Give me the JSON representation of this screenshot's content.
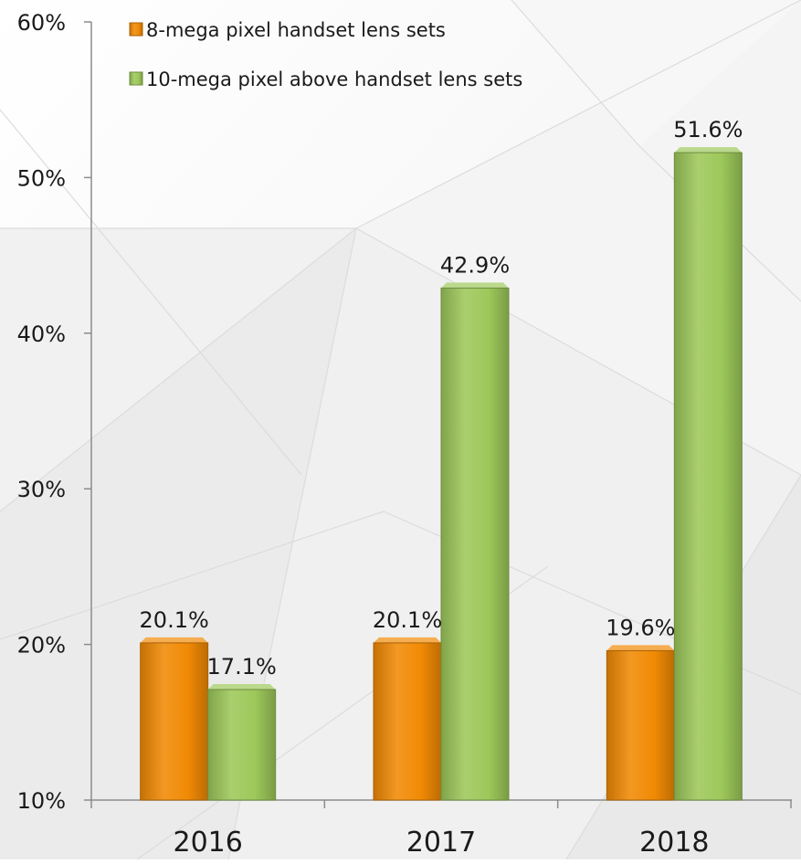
{
  "chart_data": {
    "type": "bar",
    "categories": [
      "2016",
      "2017",
      "2018"
    ],
    "series": [
      {
        "name": "8-mega pixel handset lens sets",
        "values": [
          20.1,
          20.1,
          19.6
        ],
        "labels": [
          "20.1%",
          "20.1%",
          "19.6%"
        ],
        "color": "#f18a05"
      },
      {
        "name": "10-mega pixel above handset lens sets",
        "values": [
          17.1,
          42.9,
          51.6
        ],
        "labels": [
          "17.1%",
          "42.9%",
          "51.6%"
        ],
        "color": "#9dc85a"
      }
    ],
    "ylim": [
      10,
      60
    ],
    "yticks": [
      10,
      20,
      30,
      40,
      50,
      60
    ],
    "ytick_labels": [
      "10%",
      "20%",
      "30%",
      "40%",
      "50%",
      "60%"
    ],
    "legend_position": "top-left",
    "grid": false,
    "title": "",
    "xlabel": "",
    "ylabel": ""
  }
}
